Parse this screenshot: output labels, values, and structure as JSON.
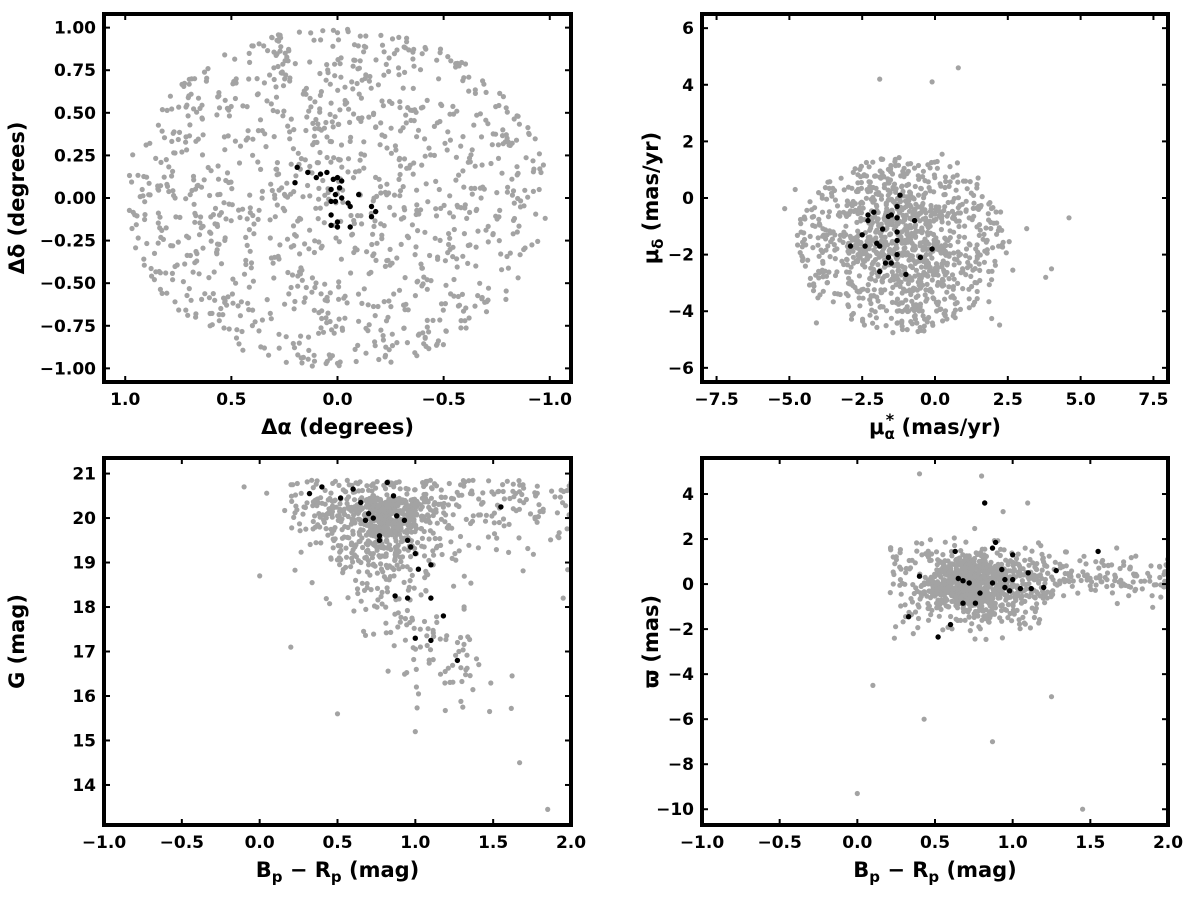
{
  "colors": {
    "field": "#a3a3a3",
    "members": "#000000",
    "axes": "#000000"
  },
  "chart_data": [
    {
      "type": "scatter",
      "id": "sky",
      "xlabel": "Δα (degrees)",
      "ylabel": "Δδ (degrees)",
      "xlim": [
        1.1,
        -1.1
      ],
      "ylim": [
        -1.08,
        1.08
      ],
      "x_ticks": [
        1.0,
        0.5,
        0.0,
        -0.5,
        -1.0
      ],
      "x_tick_labels": [
        "1.0",
        "0.5",
        "0.0",
        "−0.5",
        "−1.0"
      ],
      "y_ticks": [
        1.0,
        0.75,
        0.5,
        0.25,
        0.0,
        -0.25,
        -0.5,
        -0.75,
        -1.0
      ],
      "y_tick_labels": [
        "1.00",
        "0.75",
        "0.50",
        "0.25",
        "0.00",
        "−0.25",
        "−0.50",
        "−0.75",
        "−1.00"
      ],
      "grid": false,
      "series": [
        {
          "role": "field",
          "distribution": {
            "shape": "disk",
            "center": [
              0.0,
              0.0
            ],
            "radius": 1.0,
            "count": 1100
          },
          "points": [
            [
              0.92,
              0.05
            ],
            [
              -0.95,
              0.05
            ],
            [
              0.0,
              0.97
            ],
            [
              0.0,
              -0.97
            ],
            [
              0.7,
              0.6
            ],
            [
              -0.7,
              0.62
            ],
            [
              0.6,
              -0.75
            ],
            [
              -0.6,
              -0.72
            ]
          ]
        },
        {
          "role": "members",
          "points": [
            [
              0.19,
              0.18
            ],
            [
              0.14,
              0.15
            ],
            [
              0.1,
              0.12
            ],
            [
              0.08,
              0.14
            ],
            [
              0.2,
              0.09
            ],
            [
              0.05,
              0.15
            ],
            [
              0.02,
              0.11
            ],
            [
              0.0,
              0.12
            ],
            [
              -0.02,
              0.1
            ],
            [
              0.03,
              0.05
            ],
            [
              -0.01,
              0.06
            ],
            [
              0.01,
              0.02
            ],
            [
              -0.02,
              0.0
            ],
            [
              0.01,
              -0.02
            ],
            [
              0.03,
              -0.02
            ],
            [
              -0.05,
              -0.03
            ],
            [
              -0.06,
              -0.05
            ],
            [
              -0.1,
              0.02
            ],
            [
              0.03,
              -0.1
            ],
            [
              0.0,
              -0.14
            ],
            [
              0.0,
              -0.17
            ],
            [
              -0.06,
              -0.17
            ],
            [
              0.03,
              -0.16
            ],
            [
              -0.16,
              -0.05
            ],
            [
              -0.18,
              -0.08
            ],
            [
              -0.16,
              -0.11
            ]
          ]
        }
      ]
    },
    {
      "type": "scatter",
      "id": "proper-motion",
      "xlabel": "μ",
      "xlabel_sub": "α",
      "xlabel_sup": "*",
      "xlabel_unit": "(mas/yr)",
      "ylabel": "μ",
      "ylabel_sub": "δ",
      "ylabel_unit": "(mas/yr)",
      "xlim": [
        -8.0,
        8.0
      ],
      "ylim": [
        -6.5,
        6.5
      ],
      "x_ticks": [
        -7.5,
        -5.0,
        -2.5,
        0.0,
        2.5,
        5.0,
        7.5
      ],
      "x_tick_labels": [
        "−7.5",
        "−5.0",
        "−2.5",
        "0.0",
        "2.5",
        "5.0",
        "7.5"
      ],
      "y_ticks": [
        6,
        4,
        2,
        0,
        -2,
        -4,
        -6
      ],
      "y_tick_labels": [
        "6",
        "4",
        "2",
        "0",
        "−2",
        "−4",
        "−6"
      ],
      "grid": false,
      "series": [
        {
          "role": "field",
          "distribution": {
            "shape": "ellipse",
            "center": [
              -1.2,
              -1.6
            ],
            "radius": [
              3.6,
              3.1
            ],
            "cutoff_y": [
              -4.8,
              4.6
            ],
            "count": 1100
          },
          "points": [
            [
              -4.8,
              0.3
            ],
            [
              4.6,
              -0.7
            ],
            [
              0.8,
              4.6
            ],
            [
              -1.9,
              4.2
            ],
            [
              4.0,
              -2.5
            ],
            [
              3.8,
              -2.8
            ],
            [
              -0.1,
              4.1
            ]
          ]
        },
        {
          "role": "members",
          "points": [
            [
              -1.2,
              0.1
            ],
            [
              -1.3,
              -0.3
            ],
            [
              -2.3,
              -0.6
            ],
            [
              -2.1,
              -0.5
            ],
            [
              -1.5,
              -0.6
            ],
            [
              -1.6,
              -0.65
            ],
            [
              -2.3,
              -0.8
            ],
            [
              -1.3,
              -0.7
            ],
            [
              -0.7,
              -0.8
            ],
            [
              -2.5,
              -1.3
            ],
            [
              -1.8,
              -1.1
            ],
            [
              -1.3,
              -1.2
            ],
            [
              -1.3,
              -1.5
            ],
            [
              -2.9,
              -1.7
            ],
            [
              -2.4,
              -1.7
            ],
            [
              -2.0,
              -1.6
            ],
            [
              -1.9,
              -1.7
            ],
            [
              -0.1,
              -1.8
            ],
            [
              -1.3,
              -2.0
            ],
            [
              -1.6,
              -2.1
            ],
            [
              -0.5,
              -2.1
            ],
            [
              -1.7,
              -2.3
            ],
            [
              -1.5,
              -2.3
            ],
            [
              -1.9,
              -2.6
            ],
            [
              -1.0,
              -2.7
            ]
          ]
        }
      ]
    },
    {
      "type": "scatter",
      "id": "cmd",
      "xlabel": "B",
      "xlabel_sub1": "p",
      "xlabel_mid": " − R",
      "xlabel_sub2": "p",
      "xlabel_unit": " (mag)",
      "ylabel": "G (mag)",
      "xlim": [
        -1.0,
        2.0
      ],
      "ylim": [
        13.1,
        21.35
      ],
      "x_ticks": [
        -1.0,
        -0.5,
        0.0,
        0.5,
        1.0,
        1.5,
        2.0
      ],
      "x_tick_labels": [
        "−1.0",
        "−0.5",
        "0.0",
        "0.5",
        "1.0",
        "1.5",
        "2.0"
      ],
      "y_ticks": [
        21,
        20,
        19,
        18,
        17,
        16,
        15,
        14
      ],
      "y_tick_labels": [
        "21",
        "20",
        "19",
        "18",
        "17",
        "16",
        "15",
        "14"
      ],
      "grid": false,
      "series": [
        {
          "role": "field",
          "distribution": {
            "shape": "cmd",
            "center": [
              0.8,
              20.1
            ],
            "count": 1000
          },
          "points": [
            [
              0.5,
              15.6
            ],
            [
              1.0,
              15.2
            ],
            [
              1.67,
              14.5
            ],
            [
              1.85,
              13.45
            ],
            [
              -0.1,
              20.7
            ],
            [
              0.0,
              18.7
            ],
            [
              0.2,
              17.1
            ],
            [
              1.95,
              18.2
            ],
            [
              2.0,
              20.8
            ]
          ]
        },
        {
          "role": "members",
          "points": [
            [
              0.32,
              20.55
            ],
            [
              0.4,
              20.7
            ],
            [
              0.52,
              20.45
            ],
            [
              0.6,
              20.65
            ],
            [
              0.65,
              20.35
            ],
            [
              0.7,
              20.1
            ],
            [
              0.68,
              19.95
            ],
            [
              0.73,
              20.0
            ],
            [
              0.77,
              19.6
            ],
            [
              0.77,
              19.5
            ],
            [
              0.82,
              20.8
            ],
            [
              0.86,
              20.5
            ],
            [
              0.88,
              20.05
            ],
            [
              0.93,
              19.95
            ],
            [
              0.95,
              19.5
            ],
            [
              0.97,
              19.35
            ],
            [
              1.0,
              19.2
            ],
            [
              1.02,
              18.85
            ],
            [
              1.1,
              18.95
            ],
            [
              0.87,
              18.25
            ],
            [
              0.95,
              18.2
            ],
            [
              1.1,
              18.2
            ],
            [
              1.18,
              17.8
            ],
            [
              1.0,
              17.3
            ],
            [
              1.1,
              17.25
            ],
            [
              1.27,
              16.8
            ],
            [
              1.55,
              20.25
            ]
          ]
        }
      ]
    },
    {
      "type": "scatter",
      "id": "parallax",
      "xlabel": "B",
      "xlabel_sub1": "p",
      "xlabel_mid": " − R",
      "xlabel_sub2": "p",
      "xlabel_unit": " (mag)",
      "ylabel": "ϖ (mas)",
      "xlim": [
        -1.0,
        2.0
      ],
      "ylim": [
        -10.7,
        5.6
      ],
      "x_ticks": [
        -1.0,
        -0.5,
        0.0,
        0.5,
        1.0,
        1.5,
        2.0
      ],
      "x_tick_labels": [
        "−1.0",
        "−0.5",
        "0.0",
        "0.5",
        "1.0",
        "1.5",
        "2.0"
      ],
      "y_ticks": [
        4,
        2,
        0,
        -2,
        -4,
        -6,
        -8,
        -10
      ],
      "y_tick_labels": [
        "4",
        "2",
        "0",
        "−2",
        "−4",
        "−6",
        "−8",
        "−10"
      ],
      "grid": false,
      "series": [
        {
          "role": "field",
          "distribution": {
            "shape": "band",
            "center": [
              0.75,
              0.0
            ],
            "count": 1100
          },
          "points": [
            [
              0.0,
              -9.3
            ],
            [
              1.45,
              -10.0
            ],
            [
              0.87,
              -7.0
            ],
            [
              0.4,
              4.9
            ],
            [
              0.8,
              4.8
            ],
            [
              0.1,
              -4.5
            ],
            [
              0.43,
              -6.0
            ],
            [
              1.25,
              -5.0
            ]
          ]
        },
        {
          "role": "members",
          "points": [
            [
              0.82,
              3.6
            ],
            [
              0.87,
              1.6
            ],
            [
              0.89,
              1.85
            ],
            [
              0.63,
              1.45
            ],
            [
              1.0,
              1.3
            ],
            [
              1.55,
              1.45
            ],
            [
              0.93,
              0.65
            ],
            [
              1.1,
              0.5
            ],
            [
              1.28,
              0.6
            ],
            [
              0.4,
              0.35
            ],
            [
              0.65,
              0.25
            ],
            [
              0.68,
              0.15
            ],
            [
              0.72,
              0.05
            ],
            [
              0.87,
              0.05
            ],
            [
              0.95,
              0.2
            ],
            [
              1.0,
              0.2
            ],
            [
              1.05,
              -0.2
            ],
            [
              1.12,
              -0.2
            ],
            [
              0.79,
              -0.4
            ],
            [
              0.95,
              -0.15
            ],
            [
              0.98,
              -0.3
            ],
            [
              1.2,
              -0.15
            ],
            [
              0.68,
              -0.85
            ],
            [
              0.76,
              -0.85
            ],
            [
              0.33,
              -1.45
            ],
            [
              0.6,
              -1.8
            ],
            [
              0.52,
              -2.35
            ]
          ]
        }
      ]
    }
  ]
}
